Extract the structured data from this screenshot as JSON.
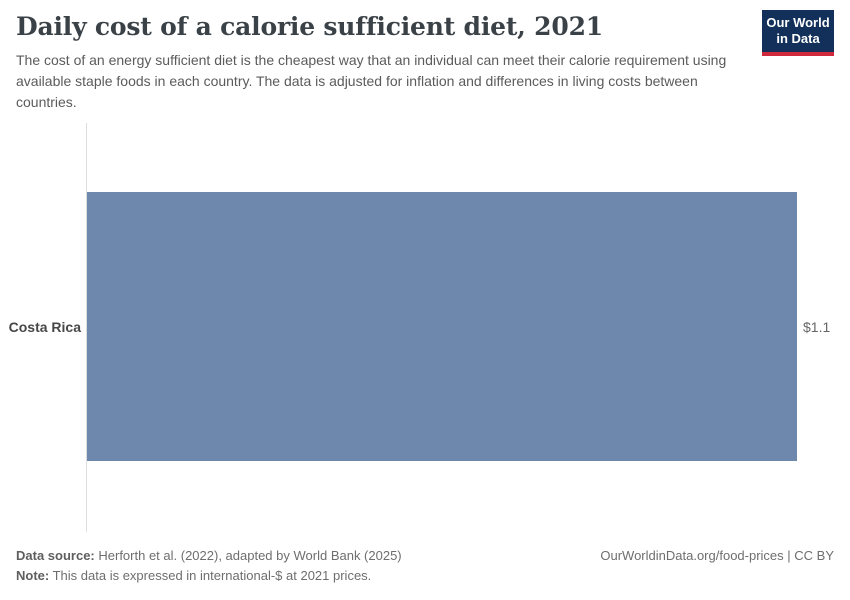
{
  "header": {
    "title": "Daily cost of a calorie sufficient diet, 2021",
    "subtitle": "The cost of an energy sufficient diet is the cheapest way that an individual can meet their calorie requirement using available staple foods in each country. The data is adjusted for inflation and differences in living costs between countries.",
    "logo": {
      "line1": "Our World",
      "line2": "in Data"
    }
  },
  "chart_data": {
    "type": "bar",
    "orientation": "horizontal",
    "title": "Daily cost of a calorie sufficient diet, 2021",
    "categories": [
      "Costa Rica"
    ],
    "values": [
      1.1
    ],
    "value_labels": [
      "$1.1"
    ],
    "unit": "international-$ per day",
    "xlabel": "",
    "ylabel": "",
    "xlim": [
      0,
      1.1
    ],
    "grid": false,
    "legend": "none",
    "bar_color": "#6e87ad"
  },
  "footer": {
    "datasource_label": "Data source:",
    "datasource_text": "Herforth et al. (2022), adapted by World Bank (2025)",
    "note_label": "Note:",
    "note_text": "This data is expressed in international-$ at 2021 prices.",
    "rights": "OurWorldinData.org/food-prices | CC BY"
  },
  "colors": {
    "bar": "#6e87ad",
    "axis": "#dedede",
    "logo_bg": "#12305a",
    "logo_red": "#d0293b"
  }
}
